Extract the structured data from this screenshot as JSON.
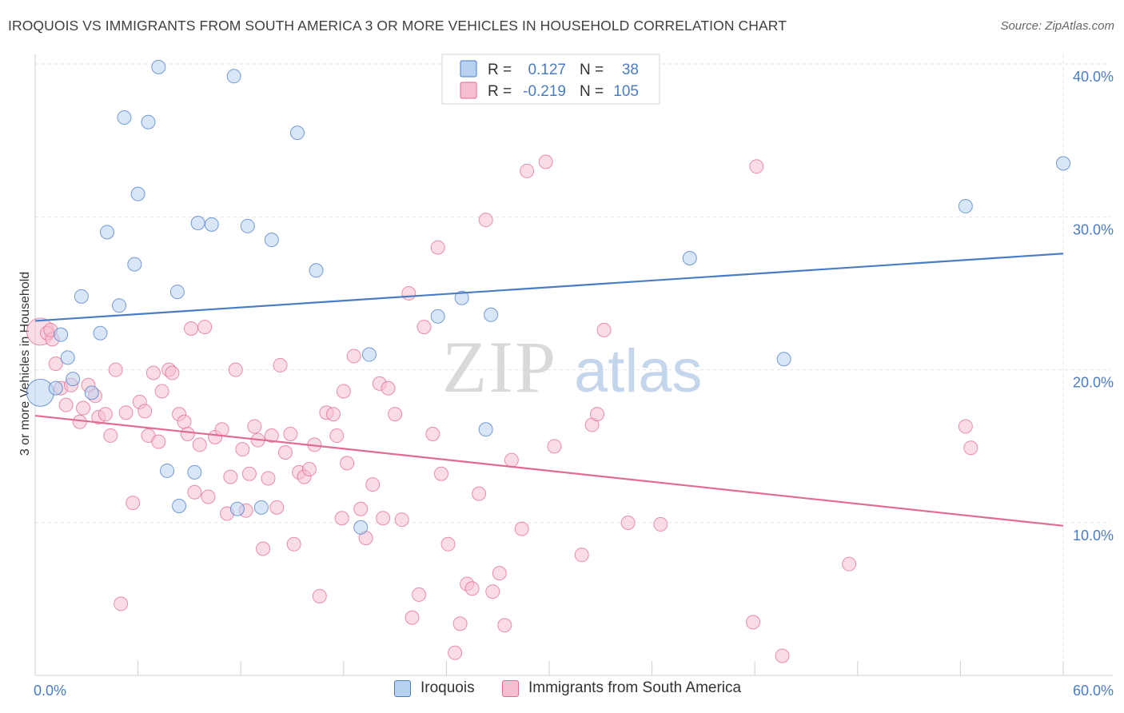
{
  "title": "IROQUOIS VS IMMIGRANTS FROM SOUTH AMERICA 3 OR MORE VEHICLES IN HOUSEHOLD CORRELATION CHART",
  "source": "Source: ZipAtlas.com",
  "watermark": {
    "zip": "ZIP",
    "atlas": "atlas"
  },
  "chart_data": {
    "type": "scatter",
    "ylabel": "3 or more Vehicles in Household",
    "xlim": [
      0,
      60
    ],
    "ylim": [
      0,
      42
    ],
    "x_tick_labels": [
      {
        "value": 0,
        "label": "0.0%"
      },
      {
        "value": 60,
        "label": "60.0%"
      }
    ],
    "y_tick_labels": [
      {
        "value": 10,
        "label": "10.0%"
      },
      {
        "value": 20,
        "label": "20.0%"
      },
      {
        "value": 30,
        "label": "30.0%"
      },
      {
        "value": 40,
        "label": "40.0%"
      }
    ],
    "grid": true,
    "legend_placement": "top-center",
    "stats": [
      {
        "r_label": "R =",
        "r_value": "0.127",
        "n_label": "N =",
        "n_value": "38"
      },
      {
        "r_label": "R =",
        "r_value": "-0.219",
        "n_label": "N =",
        "n_value": "105"
      }
    ],
    "series": [
      {
        "name": "Iroquois",
        "color": "#4a7cc4",
        "fill": "#b9d1f0",
        "trend": [
          [
            0,
            23.2
          ],
          [
            60,
            27.6
          ]
        ],
        "points": [
          [
            0.3,
            18.5
          ],
          [
            1.2,
            18.8
          ],
          [
            1.5,
            22.3
          ],
          [
            1.9,
            20.8
          ],
          [
            2.2,
            19.4
          ],
          [
            2.7,
            24.8
          ],
          [
            3.3,
            18.5
          ],
          [
            3.8,
            22.4
          ],
          [
            4.2,
            29.0
          ],
          [
            4.9,
            24.2
          ],
          [
            5.2,
            36.5
          ],
          [
            5.8,
            26.9
          ],
          [
            6.0,
            31.5
          ],
          [
            6.6,
            36.2
          ],
          [
            7.2,
            39.8
          ],
          [
            7.7,
            13.4
          ],
          [
            8.3,
            25.1
          ],
          [
            8.4,
            11.1
          ],
          [
            9.3,
            13.3
          ],
          [
            9.5,
            29.6
          ],
          [
            10.3,
            29.5
          ],
          [
            11.6,
            39.2
          ],
          [
            11.8,
            10.9
          ],
          [
            12.4,
            29.4
          ],
          [
            13.2,
            11.0
          ],
          [
            13.8,
            28.5
          ],
          [
            15.3,
            35.5
          ],
          [
            16.4,
            26.5
          ],
          [
            19.0,
            9.7
          ],
          [
            19.5,
            21.0
          ],
          [
            23.5,
            23.5
          ],
          [
            24.9,
            24.7
          ],
          [
            26.3,
            16.1
          ],
          [
            26.6,
            23.6
          ],
          [
            38.2,
            27.3
          ],
          [
            43.7,
            20.7
          ],
          [
            54.3,
            30.7
          ],
          [
            60.0,
            33.5
          ]
        ]
      },
      {
        "name": "Immigrants from South America",
        "color": "#e06b96",
        "fill": "#f6bfd0",
        "trend": [
          [
            0,
            17.0
          ],
          [
            60,
            9.8
          ]
        ],
        "points": [
          [
            0.3,
            22.5
          ],
          [
            0.7,
            22.4
          ],
          [
            1.2,
            20.4
          ],
          [
            1.5,
            18.8
          ],
          [
            1.8,
            17.7
          ],
          [
            2.1,
            19.0
          ],
          [
            2.6,
            16.6
          ],
          [
            2.8,
            17.5
          ],
          [
            3.1,
            19.0
          ],
          [
            3.5,
            18.3
          ],
          [
            3.7,
            16.9
          ],
          [
            4.1,
            17.1
          ],
          [
            4.4,
            15.7
          ],
          [
            4.7,
            20.0
          ],
          [
            5.0,
            4.7
          ],
          [
            5.3,
            17.2
          ],
          [
            5.7,
            11.3
          ],
          [
            6.1,
            17.9
          ],
          [
            6.4,
            17.3
          ],
          [
            6.6,
            15.7
          ],
          [
            6.9,
            19.8
          ],
          [
            7.2,
            15.3
          ],
          [
            7.4,
            18.6
          ],
          [
            7.8,
            20.0
          ],
          [
            8.0,
            19.8
          ],
          [
            8.4,
            17.1
          ],
          [
            8.7,
            16.6
          ],
          [
            8.9,
            15.8
          ],
          [
            9.1,
            22.7
          ],
          [
            9.3,
            12.0
          ],
          [
            9.6,
            15.1
          ],
          [
            9.9,
            22.8
          ],
          [
            10.1,
            11.7
          ],
          [
            10.5,
            15.6
          ],
          [
            10.9,
            16.1
          ],
          [
            11.2,
            10.6
          ],
          [
            11.4,
            13.0
          ],
          [
            11.7,
            20.0
          ],
          [
            12.1,
            14.8
          ],
          [
            12.5,
            13.2
          ],
          [
            12.8,
            16.3
          ],
          [
            13.0,
            15.4
          ],
          [
            13.3,
            8.3
          ],
          [
            13.6,
            12.9
          ],
          [
            13.8,
            15.7
          ],
          [
            14.1,
            11.0
          ],
          [
            14.3,
            20.3
          ],
          [
            14.6,
            14.6
          ],
          [
            14.9,
            15.8
          ],
          [
            15.1,
            8.6
          ],
          [
            15.4,
            13.3
          ],
          [
            15.7,
            13.0
          ],
          [
            16.0,
            13.5
          ],
          [
            16.3,
            15.1
          ],
          [
            16.6,
            5.2
          ],
          [
            17.0,
            17.2
          ],
          [
            17.4,
            17.1
          ],
          [
            17.6,
            15.7
          ],
          [
            17.9,
            10.3
          ],
          [
            18.2,
            13.9
          ],
          [
            18.6,
            20.9
          ],
          [
            19.0,
            10.9
          ],
          [
            19.3,
            9.0
          ],
          [
            20.1,
            19.1
          ],
          [
            20.3,
            10.3
          ],
          [
            20.6,
            18.8
          ],
          [
            21.0,
            17.1
          ],
          [
            21.4,
            10.2
          ],
          [
            21.8,
            25.0
          ],
          [
            22.0,
            3.8
          ],
          [
            22.4,
            5.3
          ],
          [
            22.7,
            22.8
          ],
          [
            23.2,
            15.8
          ],
          [
            23.5,
            28.0
          ],
          [
            23.7,
            13.2
          ],
          [
            24.1,
            8.6
          ],
          [
            24.5,
            1.5
          ],
          [
            24.8,
            3.4
          ],
          [
            25.2,
            6.0
          ],
          [
            25.5,
            5.7
          ],
          [
            25.9,
            11.9
          ],
          [
            26.3,
            29.8
          ],
          [
            26.7,
            5.5
          ],
          [
            27.1,
            6.7
          ],
          [
            27.4,
            3.3
          ],
          [
            27.8,
            14.1
          ],
          [
            28.4,
            9.6
          ],
          [
            28.7,
            33.0
          ],
          [
            29.8,
            33.6
          ],
          [
            30.3,
            15.0
          ],
          [
            31.9,
            7.9
          ],
          [
            32.5,
            16.4
          ],
          [
            32.8,
            17.1
          ],
          [
            33.2,
            22.6
          ],
          [
            34.6,
            10.0
          ],
          [
            36.5,
            9.9
          ],
          [
            42.1,
            33.3
          ],
          [
            41.9,
            3.5
          ],
          [
            43.6,
            1.3
          ],
          [
            47.5,
            7.3
          ],
          [
            54.3,
            16.3
          ],
          [
            54.6,
            14.9
          ],
          [
            1.0,
            22.0
          ],
          [
            0.9,
            22.6
          ],
          [
            12.3,
            10.8
          ],
          [
            18.0,
            18.6
          ],
          [
            19.7,
            12.5
          ]
        ]
      }
    ]
  }
}
